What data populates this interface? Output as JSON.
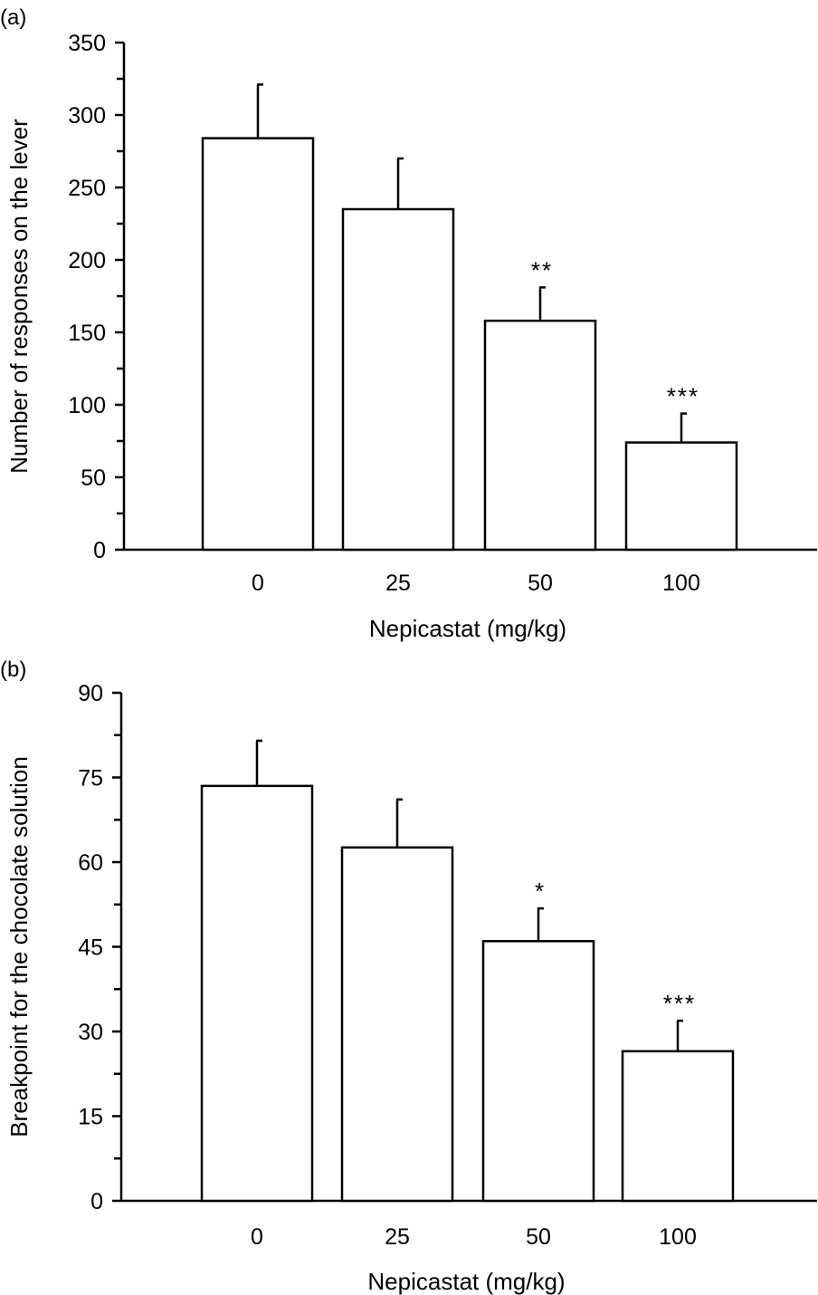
{
  "chart_data": [
    {
      "panel_label": "(a)",
      "type": "bar",
      "categories": [
        "0",
        "25",
        "50",
        "100"
      ],
      "values": [
        284,
        235,
        158,
        74
      ],
      "error_upper": [
        321,
        270,
        181,
        94
      ],
      "annotations": [
        "",
        "",
        "**",
        "***"
      ],
      "xlabel": "Nepicastat (mg/kg)",
      "ylabel": "Number of responses on the lever",
      "ylim": [
        0,
        350
      ],
      "yticks": [
        0,
        50,
        100,
        150,
        200,
        250,
        300,
        350
      ],
      "ytick_labels": [
        "0",
        "50",
        "100",
        "150",
        "200",
        "250",
        "300",
        "350"
      ],
      "grid": false,
      "bar_fill": "#ffffff",
      "bar_stroke": "#000000"
    },
    {
      "panel_label": "(b)",
      "type": "bar",
      "categories": [
        "0",
        "25",
        "50",
        "100"
      ],
      "values": [
        73.5,
        62.6,
        46,
        26.5
      ],
      "error_upper": [
        81.5,
        71.1,
        51.8,
        31.9
      ],
      "annotations": [
        "",
        "",
        "*",
        "***"
      ],
      "xlabel": "Nepicastat (mg/kg)",
      "ylabel": "Breakpoint for the chocolate solution",
      "ylim": [
        0,
        90
      ],
      "yticks": [
        0,
        15,
        30,
        45,
        60,
        75,
        90
      ],
      "ytick_labels": [
        "0",
        "15",
        "30",
        "45",
        "60",
        "75",
        "90"
      ],
      "grid": false,
      "bar_fill": "#ffffff",
      "bar_stroke": "#000000"
    }
  ]
}
